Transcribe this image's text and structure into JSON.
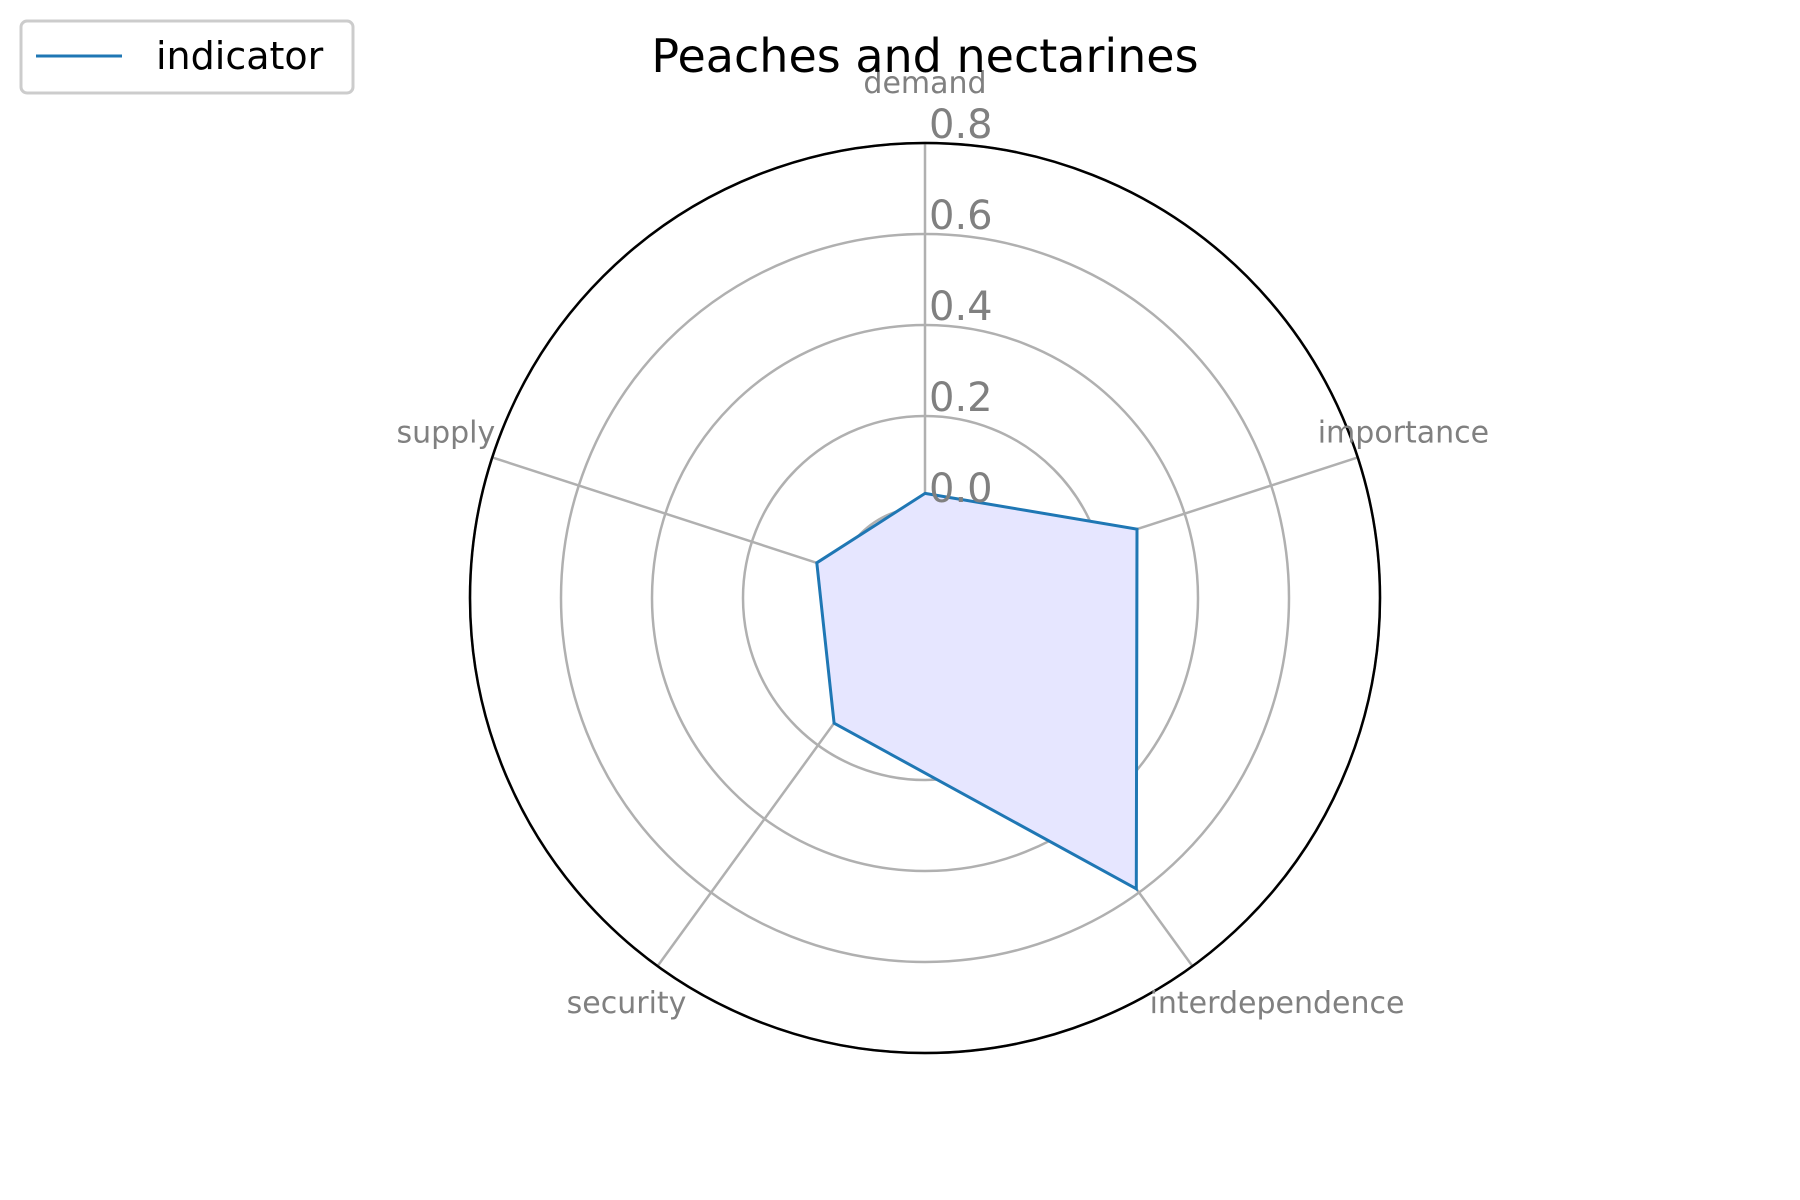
{
  "chart_data": {
    "type": "radar",
    "title": "Peaches and nectarines",
    "categories": [
      "demand",
      "importance",
      "interdependence",
      "security",
      "supply"
    ],
    "series": [
      {
        "name": "indicator",
        "values": [
          0.03,
          0.29,
          0.59,
          0.14,
          0.05
        ],
        "line_color": "#1f77b4",
        "fill_color": "#e6e6ff"
      }
    ],
    "radial_ticks": [
      "0.0",
      "0.2",
      "0.4",
      "0.6",
      "0.8"
    ],
    "radial_tick_values": [
      0.0,
      0.2,
      0.4,
      0.6,
      0.8
    ],
    "rlim": [
      -0.2,
      0.8
    ],
    "grid": true,
    "grid_color": "#b0b0b0",
    "label_color": "#808080",
    "legend_position": "top-left"
  }
}
